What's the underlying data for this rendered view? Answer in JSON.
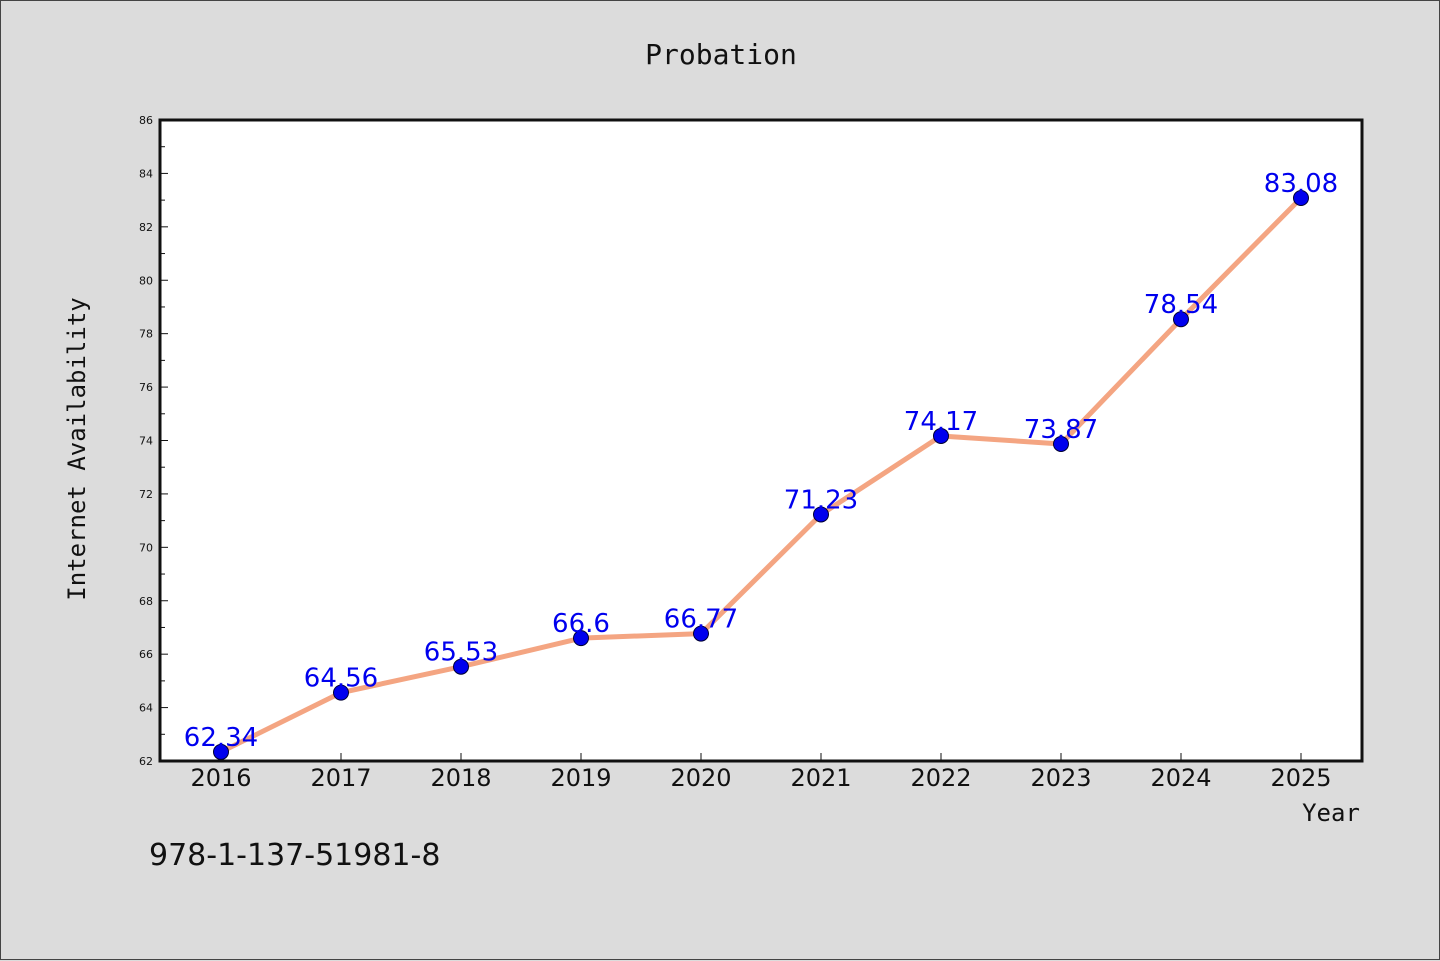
{
  "chart_data": {
    "type": "line",
    "title": "Probation",
    "xlabel": "Year",
    "ylabel": "Internet Availability",
    "x": [
      "2016",
      "2017",
      "2018",
      "2019",
      "2020",
      "2021",
      "2022",
      "2023",
      "2024",
      "2025"
    ],
    "series": [
      {
        "values": [
          62.34,
          64.56,
          65.53,
          66.6,
          66.77,
          71.23,
          74.17,
          73.87,
          78.54,
          83.08
        ]
      }
    ],
    "data_labels": [
      "62.34",
      "64.56",
      "65.53",
      "66.6",
      "66.77",
      "71.23",
      "74.17",
      "73.87",
      "78.54",
      "83.08"
    ],
    "ylim": [
      62,
      86
    ],
    "yticks": [
      "62",
      "64",
      "66",
      "68",
      "70",
      "72",
      "74",
      "76",
      "78",
      "80",
      "82",
      "84",
      "86"
    ],
    "grid": false,
    "legend": "none",
    "colors": {
      "line": "#f4a582",
      "marker": "#0000ee",
      "label": "#0000ee",
      "background": "#dcdcdc",
      "plot": "#ffffff"
    }
  },
  "footnote": "978-1-137-51981-8"
}
